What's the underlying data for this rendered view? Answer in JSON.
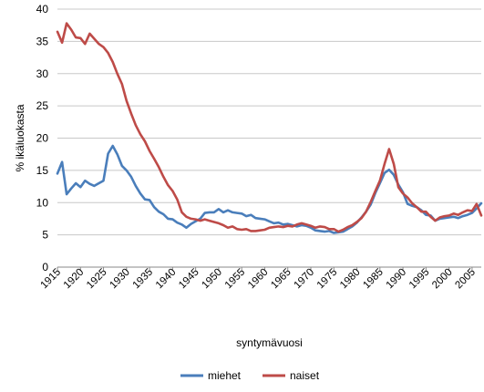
{
  "chart_data": {
    "type": "line",
    "xlabel": "syntymävuosi",
    "ylabel": "% ikäluokasta",
    "xlim": [
      1915,
      2007
    ],
    "ylim": [
      0,
      40
    ],
    "y_ticks": [
      0,
      5,
      10,
      15,
      20,
      25,
      30,
      35,
      40
    ],
    "x_ticks": [
      1915,
      1920,
      1925,
      1930,
      1935,
      1940,
      1945,
      1950,
      1955,
      1960,
      1965,
      1970,
      1975,
      1980,
      1985,
      1990,
      1995,
      2000,
      2005
    ],
    "grid": {
      "horizontal": true,
      "vertical": false
    },
    "legend": {
      "position": "bottom"
    },
    "series": [
      {
        "name": "miehet",
        "color": "#4a7ebb",
        "points": [
          [
            1915,
            14.5
          ],
          [
            1916,
            16.3
          ],
          [
            1917,
            11.3
          ],
          [
            1918,
            12.2
          ],
          [
            1919,
            13.0
          ],
          [
            1920,
            12.4
          ],
          [
            1921,
            13.4
          ],
          [
            1922,
            12.9
          ],
          [
            1923,
            12.6
          ],
          [
            1924,
            13.0
          ],
          [
            1925,
            13.4
          ],
          [
            1926,
            17.6
          ],
          [
            1927,
            18.8
          ],
          [
            1928,
            17.5
          ],
          [
            1929,
            15.7
          ],
          [
            1930,
            15.0
          ],
          [
            1931,
            14.0
          ],
          [
            1932,
            12.6
          ],
          [
            1933,
            11.4
          ],
          [
            1934,
            10.5
          ],
          [
            1935,
            10.4
          ],
          [
            1936,
            9.3
          ],
          [
            1937,
            8.6
          ],
          [
            1938,
            8.2
          ],
          [
            1939,
            7.5
          ],
          [
            1940,
            7.4
          ],
          [
            1941,
            6.9
          ],
          [
            1942,
            6.6
          ],
          [
            1943,
            6.1
          ],
          [
            1944,
            6.7
          ],
          [
            1945,
            7.1
          ],
          [
            1946,
            7.5
          ],
          [
            1947,
            8.4
          ],
          [
            1948,
            8.5
          ],
          [
            1949,
            8.5
          ],
          [
            1950,
            9.0
          ],
          [
            1951,
            8.5
          ],
          [
            1952,
            8.8
          ],
          [
            1953,
            8.5
          ],
          [
            1954,
            8.4
          ],
          [
            1955,
            8.3
          ],
          [
            1956,
            7.9
          ],
          [
            1957,
            8.1
          ],
          [
            1958,
            7.6
          ],
          [
            1959,
            7.5
          ],
          [
            1960,
            7.4
          ],
          [
            1961,
            7.1
          ],
          [
            1962,
            6.8
          ],
          [
            1963,
            6.9
          ],
          [
            1964,
            6.6
          ],
          [
            1965,
            6.7
          ],
          [
            1966,
            6.5
          ],
          [
            1967,
            6.3
          ],
          [
            1968,
            6.5
          ],
          [
            1969,
            6.4
          ],
          [
            1970,
            6.1
          ],
          [
            1971,
            5.7
          ],
          [
            1972,
            5.6
          ],
          [
            1973,
            5.5
          ],
          [
            1974,
            5.6
          ],
          [
            1975,
            5.3
          ],
          [
            1976,
            5.4
          ],
          [
            1977,
            5.5
          ],
          [
            1978,
            5.9
          ],
          [
            1979,
            6.3
          ],
          [
            1980,
            6.9
          ],
          [
            1981,
            7.7
          ],
          [
            1982,
            8.6
          ],
          [
            1983,
            9.7
          ],
          [
            1984,
            11.5
          ],
          [
            1985,
            13.0
          ],
          [
            1986,
            14.6
          ],
          [
            1987,
            15.1
          ],
          [
            1988,
            14.3
          ],
          [
            1989,
            12.8
          ],
          [
            1990,
            11.6
          ],
          [
            1991,
            9.8
          ],
          [
            1992,
            9.5
          ],
          [
            1993,
            9.3
          ],
          [
            1994,
            8.8
          ],
          [
            1995,
            8.1
          ],
          [
            1996,
            8.0
          ],
          [
            1997,
            7.2
          ],
          [
            1998,
            7.5
          ],
          [
            1999,
            7.6
          ],
          [
            2000,
            7.7
          ],
          [
            2001,
            7.8
          ],
          [
            2002,
            7.6
          ],
          [
            2003,
            7.9
          ],
          [
            2004,
            8.1
          ],
          [
            2005,
            8.4
          ],
          [
            2006,
            9.1
          ],
          [
            2007,
            9.9
          ]
        ]
      },
      {
        "name": "naiset",
        "color": "#be4b48",
        "points": [
          [
            1915,
            36.5
          ],
          [
            1916,
            34.8
          ],
          [
            1917,
            37.8
          ],
          [
            1918,
            36.8
          ],
          [
            1919,
            35.6
          ],
          [
            1920,
            35.5
          ],
          [
            1921,
            34.6
          ],
          [
            1922,
            36.2
          ],
          [
            1923,
            35.4
          ],
          [
            1924,
            34.6
          ],
          [
            1925,
            34.1
          ],
          [
            1926,
            33.2
          ],
          [
            1927,
            31.8
          ],
          [
            1928,
            30.0
          ],
          [
            1929,
            28.4
          ],
          [
            1930,
            25.8
          ],
          [
            1931,
            23.8
          ],
          [
            1932,
            22.0
          ],
          [
            1933,
            20.6
          ],
          [
            1934,
            19.5
          ],
          [
            1935,
            18.0
          ],
          [
            1936,
            16.8
          ],
          [
            1937,
            15.5
          ],
          [
            1938,
            14.0
          ],
          [
            1939,
            12.7
          ],
          [
            1940,
            11.8
          ],
          [
            1941,
            10.5
          ],
          [
            1942,
            8.5
          ],
          [
            1943,
            7.8
          ],
          [
            1944,
            7.5
          ],
          [
            1945,
            7.4
          ],
          [
            1946,
            7.2
          ],
          [
            1947,
            7.4
          ],
          [
            1948,
            7.2
          ],
          [
            1949,
            7.0
          ],
          [
            1950,
            6.8
          ],
          [
            1951,
            6.5
          ],
          [
            1952,
            6.1
          ],
          [
            1953,
            6.3
          ],
          [
            1954,
            5.9
          ],
          [
            1955,
            5.8
          ],
          [
            1956,
            5.9
          ],
          [
            1957,
            5.6
          ],
          [
            1958,
            5.6
          ],
          [
            1959,
            5.7
          ],
          [
            1960,
            5.8
          ],
          [
            1961,
            6.1
          ],
          [
            1962,
            6.2
          ],
          [
            1963,
            6.3
          ],
          [
            1964,
            6.2
          ],
          [
            1965,
            6.4
          ],
          [
            1966,
            6.3
          ],
          [
            1967,
            6.6
          ],
          [
            1968,
            6.8
          ],
          [
            1969,
            6.6
          ],
          [
            1970,
            6.4
          ],
          [
            1971,
            6.1
          ],
          [
            1972,
            6.3
          ],
          [
            1973,
            6.2
          ],
          [
            1974,
            5.9
          ],
          [
            1975,
            5.9
          ],
          [
            1976,
            5.5
          ],
          [
            1977,
            5.8
          ],
          [
            1978,
            6.2
          ],
          [
            1979,
            6.5
          ],
          [
            1980,
            7.0
          ],
          [
            1981,
            7.6
          ],
          [
            1982,
            8.6
          ],
          [
            1983,
            10.1
          ],
          [
            1984,
            11.8
          ],
          [
            1985,
            13.4
          ],
          [
            1986,
            16.0
          ],
          [
            1987,
            18.3
          ],
          [
            1988,
            16.0
          ],
          [
            1989,
            12.4
          ],
          [
            1990,
            11.4
          ],
          [
            1991,
            10.8
          ],
          [
            1992,
            9.9
          ],
          [
            1993,
            9.3
          ],
          [
            1994,
            8.6
          ],
          [
            1995,
            8.6
          ],
          [
            1996,
            7.8
          ],
          [
            1997,
            7.2
          ],
          [
            1998,
            7.7
          ],
          [
            1999,
            7.9
          ],
          [
            2000,
            8.0
          ],
          [
            2001,
            8.3
          ],
          [
            2002,
            8.1
          ],
          [
            2003,
            8.5
          ],
          [
            2004,
            8.8
          ],
          [
            2005,
            8.7
          ],
          [
            2006,
            9.8
          ],
          [
            2007,
            8.0
          ]
        ]
      }
    ]
  }
}
